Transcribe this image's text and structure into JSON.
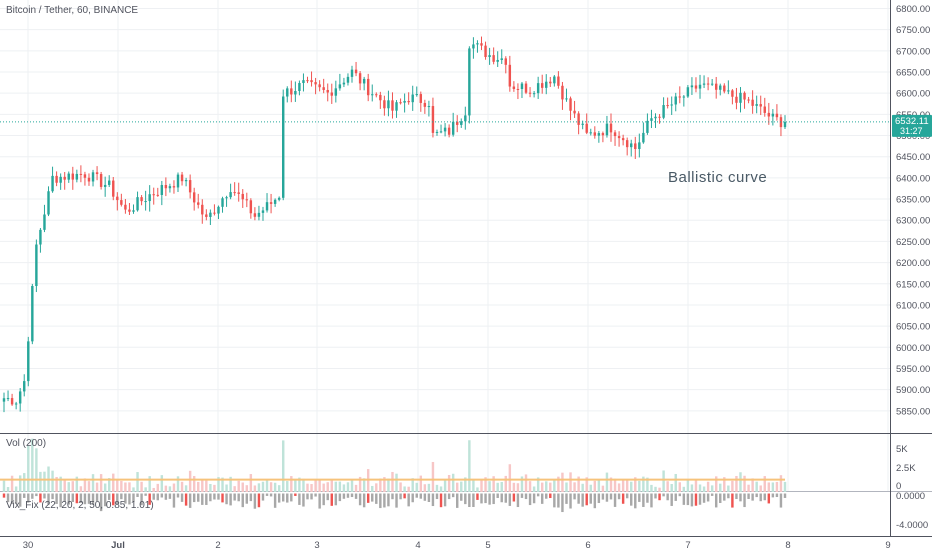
{
  "header": {
    "title": "Bitcoin / Tether, 60, BINANCE"
  },
  "annotation": "Ballistic curve",
  "price_tag": {
    "value": "6532.11",
    "timer": "31:27"
  },
  "volume_pane": {
    "label": "Vol (200)",
    "ticks": [
      "5K",
      "2.5K",
      "0"
    ]
  },
  "vix_pane": {
    "label": "Vix_Fix (22, 20, 2, 50, 0.85, 1.01)",
    "ticks": [
      "0.0000",
      "-4.0000"
    ]
  },
  "colors": {
    "up": "#26a69a",
    "down": "#ef5350",
    "grid": "#eef0f3",
    "axis": "#50535e",
    "last_price": "#26a69a",
    "vol_up": "#bfe3d9",
    "vol_down": "#f7c6c6",
    "vol_ma": "#f6c37b",
    "vix_gray": "#a8a8a8",
    "vix_green": "#3ce34a"
  },
  "chart_data": {
    "type": "candlestick",
    "title": "Bitcoin / Tether, 60, BINANCE",
    "y_axis": {
      "min": 5800,
      "max": 6820,
      "ticks": [
        6800,
        6750,
        6700,
        6650,
        6600,
        6550,
        6500,
        6450,
        6400,
        6350,
        6300,
        6250,
        6200,
        6150,
        6100,
        6050,
        6000,
        5950,
        5900,
        5850
      ]
    },
    "x_axis": {
      "labels": [
        "30",
        "Jul",
        "2",
        "3",
        "4",
        "5",
        "6",
        "7",
        "8",
        "9"
      ]
    },
    "last_price": 6532.11,
    "anchors": [
      [
        0,
        5880
      ],
      [
        3,
        5875
      ],
      [
        5,
        5920
      ],
      [
        8,
        6240
      ],
      [
        12,
        6400
      ],
      [
        20,
        6410
      ],
      [
        26,
        6380
      ],
      [
        30,
        6320
      ],
      [
        36,
        6360
      ],
      [
        44,
        6400
      ],
      [
        50,
        6300
      ],
      [
        56,
        6380
      ],
      [
        62,
        6310
      ],
      [
        66,
        6340
      ],
      [
        68,
        6360
      ],
      [
        69,
        6600
      ],
      [
        74,
        6620
      ],
      [
        80,
        6600
      ],
      [
        86,
        6650
      ],
      [
        90,
        6610
      ],
      [
        96,
        6560
      ],
      [
        100,
        6590
      ],
      [
        105,
        6580
      ],
      [
        106,
        6500
      ],
      [
        110,
        6510
      ],
      [
        114,
        6560
      ],
      [
        115,
        6720
      ],
      [
        120,
        6690
      ],
      [
        124,
        6680
      ],
      [
        125,
        6620
      ],
      [
        130,
        6610
      ],
      [
        136,
        6640
      ],
      [
        140,
        6560
      ],
      [
        144,
        6500
      ],
      [
        150,
        6520
      ],
      [
        156,
        6470
      ],
      [
        160,
        6540
      ],
      [
        166,
        6580
      ],
      [
        172,
        6620
      ],
      [
        178,
        6600
      ],
      [
        184,
        6580
      ],
      [
        190,
        6540
      ],
      [
        193,
        6530
      ]
    ],
    "volume_ma": 1500,
    "vix_fix_range": [
      -5.5,
      0.2
    ]
  }
}
